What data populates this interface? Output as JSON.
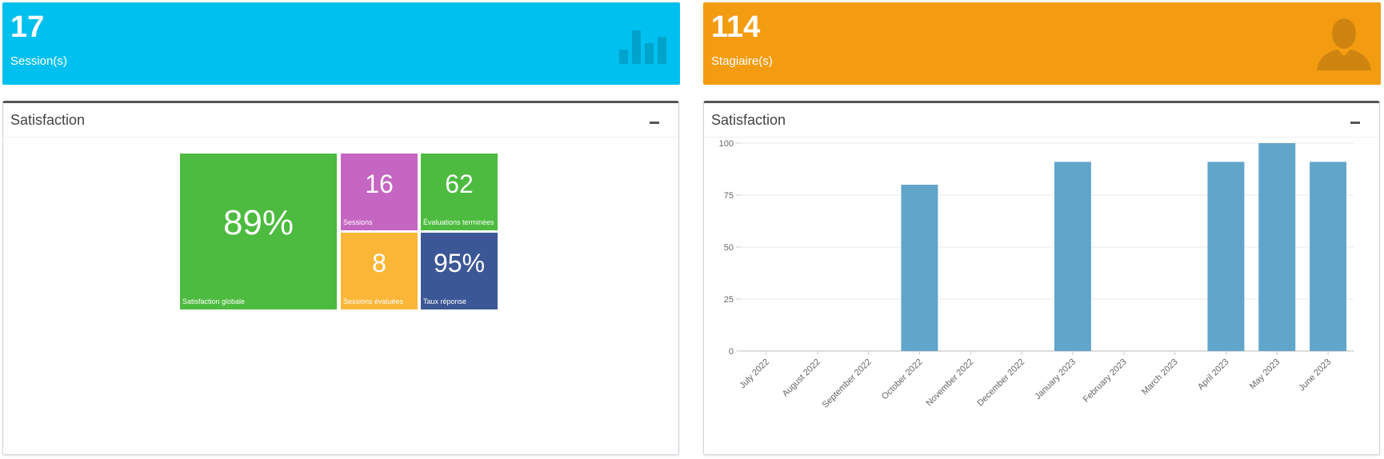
{
  "stats": [
    {
      "number": "17",
      "label": "Session(s)",
      "icon": "bar-chart-icon",
      "color": "#00c0ef"
    },
    {
      "number": "114",
      "label": "Stagiaire(s)",
      "icon": "user-icon",
      "color": "#f39c12"
    }
  ],
  "left_panel": {
    "title": "Satisfaction",
    "tiles": [
      {
        "value": "89%",
        "label": "Satisfaction globale",
        "color": "#4cbb3f"
      },
      {
        "value": "16",
        "label": "Sessions",
        "color": "#c566c2"
      },
      {
        "value": "62",
        "label": "Évaluations terminées",
        "color": "#4cbb3f"
      },
      {
        "value": "8",
        "label": "Sessions évaluées",
        "color": "#fbb637"
      },
      {
        "value": "95%",
        "label": "Taux réponse",
        "color": "#3c5796"
      }
    ]
  },
  "right_panel": {
    "title": "Satisfaction"
  },
  "chart_data": {
    "type": "bar",
    "categories": [
      "July 2022",
      "August 2022",
      "September 2022",
      "October 2022",
      "November 2022",
      "December 2022",
      "January 2023",
      "February 2023",
      "March 2023",
      "April 2023",
      "May 2023",
      "June 2023"
    ],
    "values": [
      0,
      0,
      0,
      80,
      0,
      0,
      91,
      0,
      0,
      91,
      100,
      91
    ],
    "yticks": [
      "100",
      "75",
      "50",
      "25",
      "0"
    ],
    "ylim": [
      0,
      100
    ],
    "title": "",
    "xlabel": "",
    "ylabel": "",
    "grid": true,
    "bar_color": "#62a5ca"
  }
}
